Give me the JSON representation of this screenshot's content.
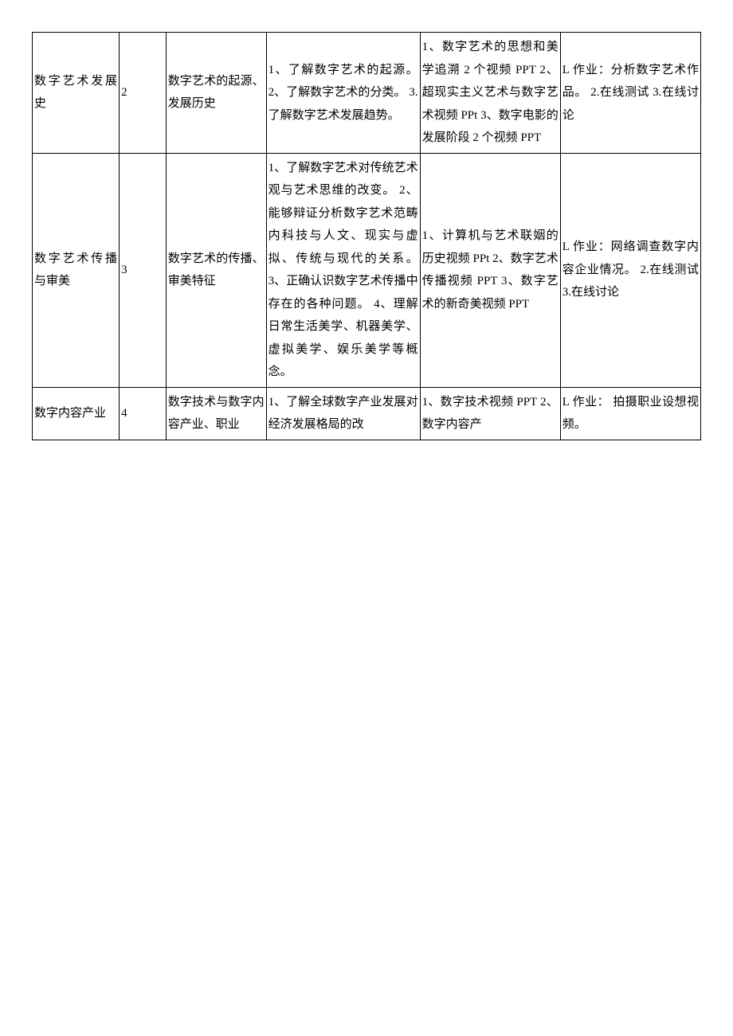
{
  "rows": [
    {
      "topic": "数字艺术发展史",
      "num": "2",
      "theme": "数字艺术的起源、发展历史",
      "goal": "1、了解数字艺术的起源。\n2、了解数字艺术的分类。\n3. 了解数字艺术发展趋势。",
      "res": "1、数字艺术的思想和美学追溯 2 个视频 PPT\n2、超现实主义艺术与数字艺术视频 PPt\n3、数字电影的发展阶段 2 个视频 PPT",
      "task": "L 作业：分析数字艺术作品。\n2.在线测试\n3.在线讨论"
    },
    {
      "topic": "数字艺术传播与审美",
      "num": "3",
      "theme": "数字艺术的传播、审美特征",
      "goal": "1、了解数字艺术对传统艺术观与艺术思维的改变。\n2、能够辩证分析数字艺术范畴内科技与人文、现实与虚拟、传统与现代的关系。\n3、正确认识数字艺术传播中存在的各种问题。\n4、理解日常生活美学、机器美学、虚拟美学、娱乐美学等概念。",
      "res": "1、计算机与艺术联姻的历史视频 PPt\n2、数字艺术传播视频 PPT\n3、数字艺术的新奇美视频 PPT",
      "task": "L 作业：网络调查数字内容企业情况。\n2.在线测试\n3.在线讨论"
    },
    {
      "topic": "数字内容产业",
      "num": "4",
      "theme": "数字技术与数字内容产业、职业",
      "goal": "1、了解全球数字产业发展对经济发展格局的改",
      "res": "1、数字技术视频 PPT\n2、数字内容产",
      "task": "L 作业：\n拍摄职业设想视频。"
    }
  ]
}
